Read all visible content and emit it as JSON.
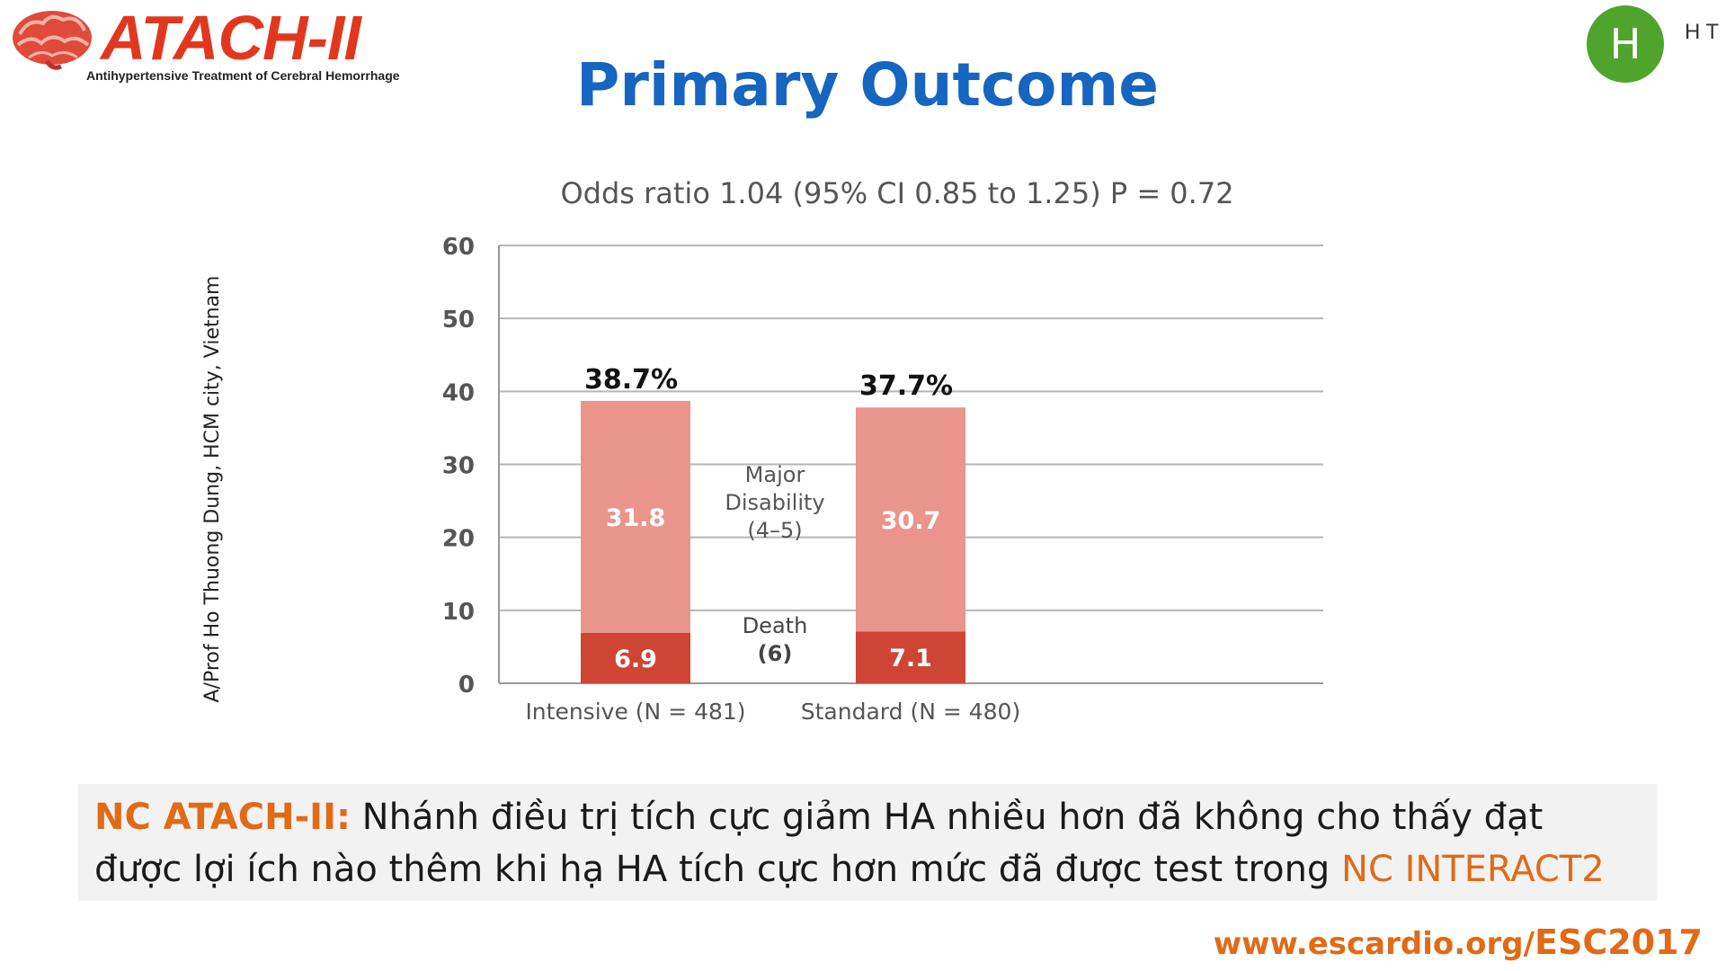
{
  "logo": {
    "name": "ATACH-II",
    "subtitle": "Antihypertensive Treatment of Cerebral Hemorrhage"
  },
  "avatar": {
    "letter": "H",
    "side_text": "HT"
  },
  "slide": {
    "title": "Primary Outcome"
  },
  "side_text": "A/Prof Ho Thuong Dung, HCM city, Vietnam",
  "chart_data": {
    "type": "bar",
    "stacked": true,
    "title": "Odds ratio 1.04 (95% CI 0.85 to 1.25) P = 0.72",
    "categories": [
      "Intensive (N = 481)",
      "Standard (N = 480)"
    ],
    "series": [
      {
        "name": "Death (6)",
        "values": [
          6.9,
          7.1
        ],
        "color": "#cf4535"
      },
      {
        "name": "Major Disability (4–5)",
        "values": [
          31.8,
          30.7
        ],
        "color": "#e9958c"
      }
    ],
    "series_label_lines": [
      [
        "Death",
        "(6)"
      ],
      [
        "Major",
        "Disability",
        "(4–5)"
      ]
    ],
    "totals": [
      "38.7%",
      "37.7%"
    ],
    "ylim": [
      0,
      60
    ],
    "yticks": [
      0,
      10,
      20,
      30,
      40,
      50,
      60
    ],
    "grid": true,
    "legend": "between-bars"
  },
  "note": {
    "lead": "NC ATACH-II:",
    "text": " Nhánh điều trị tích cực giảm HA nhiều hơn đã không cho thấy đạt được  lợi ích nào thêm khi hạ HA tích cực hơn mức đã được test trong ",
    "highlight": "NC INTERACT2"
  },
  "footer": {
    "prefix": "www.escardio.org/",
    "strong": "ESC2017"
  },
  "colors": {
    "title": "#1665c0",
    "accent": "#e06a16",
    "logo": "#e2371f",
    "avatar": "#4fa52b"
  }
}
